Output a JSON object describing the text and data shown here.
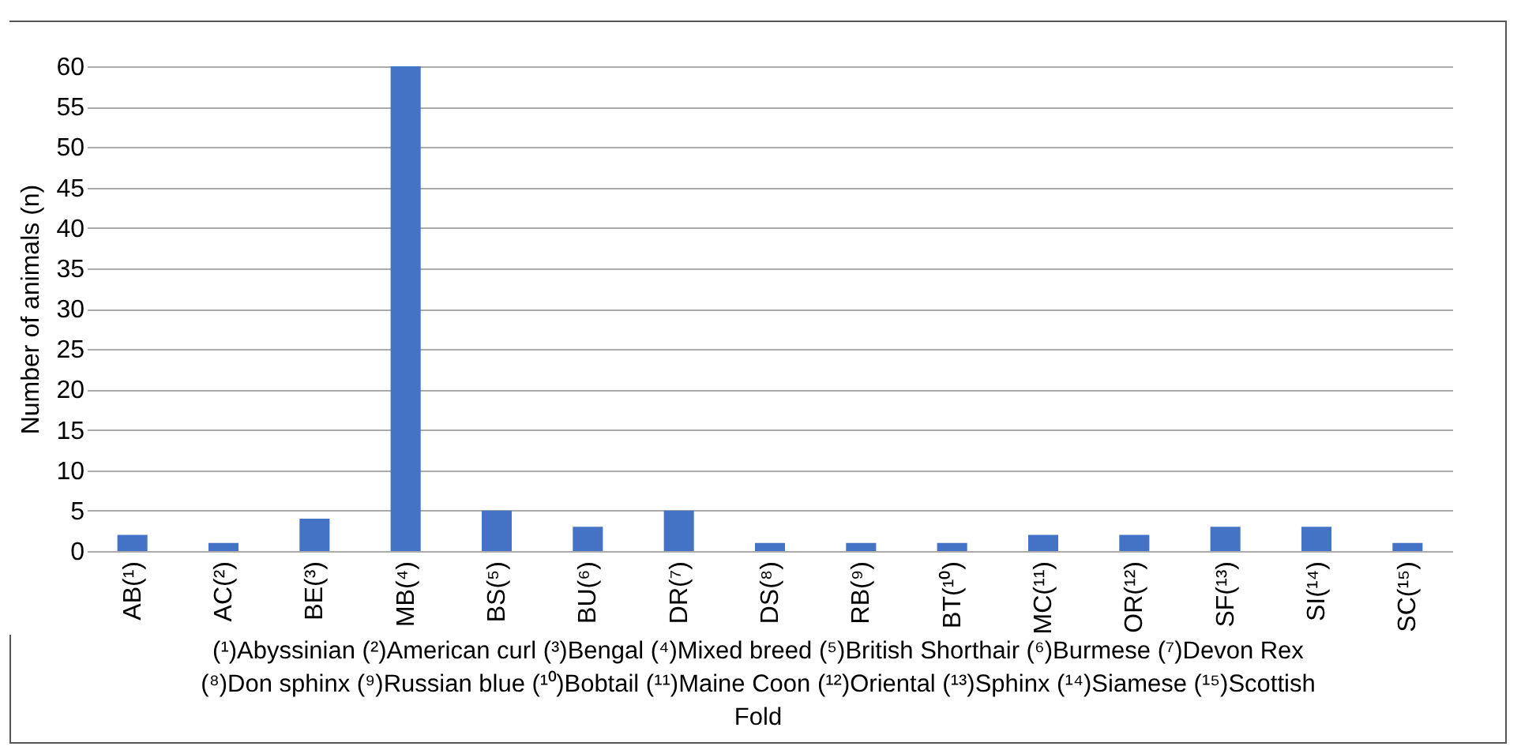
{
  "chart_data": {
    "type": "bar",
    "ylabel": "Number of animals (n)",
    "categories": [
      "AB(¹)",
      "AC(²)",
      "BE(³)",
      "MB(⁴)",
      "BS(⁵)",
      "BU(⁶)",
      "DR(⁷)",
      "DS(⁸)",
      "RB(⁹)",
      "BT(¹⁰)",
      "MC(¹¹)",
      "OR(¹²)",
      "SF(¹³)",
      "SI(¹⁴)",
      "SC(¹⁵)"
    ],
    "values": [
      2,
      1,
      4,
      60,
      5,
      3,
      5,
      1,
      1,
      1,
      2,
      2,
      3,
      3,
      1
    ],
    "color": "#4472c4",
    "ylim": [
      0,
      60
    ],
    "yticks": [
      0,
      5,
      10,
      15,
      20,
      25,
      30,
      35,
      40,
      45,
      50,
      55,
      60
    ],
    "grid": "y",
    "annotations": [
      "(¹)Abyssinian (²)American curl (³)Bengal (⁴)Mixed breed (⁵)British Shorthair (⁶)Burmese (⁷)Devon Rex (⁸)Don sphinx (⁹)Russian blue (¹⁰)Bobtail (¹¹)Maine Coon (¹²)Oriental (¹³)Sphinx (¹⁴)Siamese (¹⁵)Scottish Fold"
    ]
  }
}
